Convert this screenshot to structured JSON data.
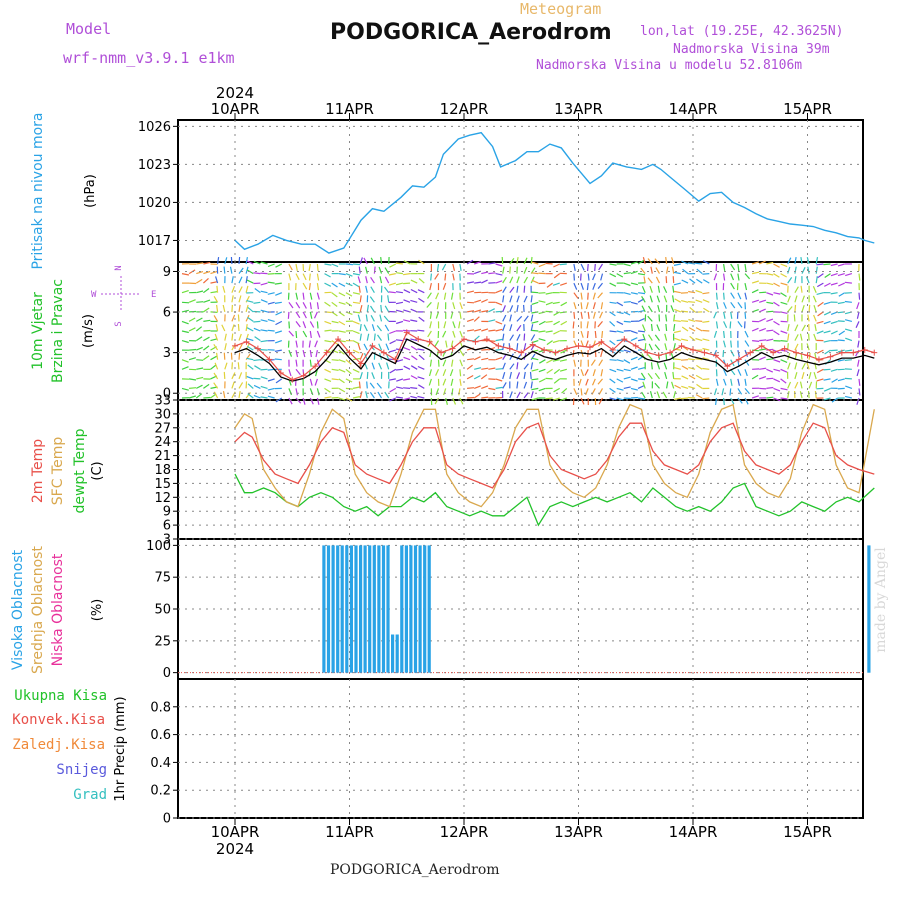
{
  "header": {
    "model_label": "Model",
    "model_version": "wrf-nmm_v3.9.1  e1km",
    "chart_kind": "Meteogram",
    "station": "PODGORICA_Aerodrom",
    "lonlat": "lon,lat (19.25E, 42.3625N)",
    "elevation": "Nadmorska Visina 39m",
    "elevation_model": "Nadmorska Visina u modelu 52.8106m"
  },
  "footer": {
    "station": "PODGORICA_Aerodrom"
  },
  "credit": "made by Angel",
  "colors": {
    "pressure": "#2aa3e6",
    "temp2m": "#e8504a",
    "sfc_temp": "#d9a84e",
    "dewpoint": "#22c22a",
    "cloud_high": "#2aa3e6",
    "wind_speed": "#000000",
    "gust": "#e8504a"
  },
  "chart_data": [
    {
      "type": "line",
      "panel": "pressure",
      "ylabel_main": "Pritisak na nivou mora",
      "ylabel_unit": "(hPa)",
      "yticks": [
        "1017",
        "1020",
        "1023",
        "1026"
      ],
      "ylim": [
        1015.3,
        1026.5
      ],
      "x_dates": [
        "10APR",
        "11APR",
        "12APR",
        "13APR",
        "14APR",
        "15APR"
      ],
      "x_year": "2024",
      "x_days": [
        0,
        0.083,
        0.2,
        0.33,
        0.45,
        0.58,
        0.7,
        0.82,
        0.95,
        1.1,
        1.2,
        1.3,
        1.45,
        1.55,
        1.65,
        1.75,
        1.82,
        1.95,
        2.05,
        2.15,
        2.25,
        2.32,
        2.45,
        2.55,
        2.65,
        2.75,
        2.85,
        2.95,
        3.1,
        3.2,
        3.3,
        3.42,
        3.55,
        3.65,
        3.72,
        3.8,
        3.92,
        4.05,
        4.15,
        4.25,
        4.35,
        4.45,
        4.55,
        4.65,
        4.75,
        4.85,
        4.95,
        5.05,
        5.15,
        5.25,
        5.35,
        5.45,
        5.5,
        5.583
      ],
      "series": [
        {
          "values": [
            1017.0,
            1016.3,
            1016.7,
            1017.4,
            1017.0,
            1016.7,
            1016.7,
            1016.0,
            1016.4,
            1018.6,
            1019.5,
            1019.3,
            1020.4,
            1021.3,
            1021.2,
            1022.0,
            1023.8,
            1025.0,
            1025.3,
            1025.5,
            1024.4,
            1022.8,
            1023.3,
            1024.0,
            1024.0,
            1024.6,
            1024.3,
            1023.1,
            1021.5,
            1022.1,
            1023.1,
            1022.8,
            1022.6,
            1023.0,
            1022.6,
            1022.0,
            1021.1,
            1020.1,
            1020.7,
            1020.8,
            1020.0,
            1019.6,
            1019.1,
            1018.7,
            1018.5,
            1018.3,
            1018.2,
            1018.1,
            1017.8,
            1017.6,
            1017.3,
            1017.2,
            1017.0,
            1016.8
          ]
        }
      ]
    },
    {
      "type": "line",
      "panel": "wind",
      "ylabel_main": "10m Vjetar",
      "ylabel_sub": "Brzina i Pravac",
      "ylabel_unit": "(m/s)",
      "compass": {
        "n": "N",
        "w": "W",
        "e": "E",
        "s": "S"
      },
      "yticks": [
        "0",
        "3",
        "6",
        "9"
      ],
      "ylim": [
        -0.5,
        9.7
      ],
      "x_days": [
        0,
        0.1,
        0.2,
        0.3,
        0.4,
        0.5,
        0.6,
        0.7,
        0.8,
        0.9,
        1.0,
        1.1,
        1.2,
        1.3,
        1.4,
        1.5,
        1.6,
        1.7,
        1.8,
        1.9,
        2.0,
        2.1,
        2.2,
        2.3,
        2.4,
        2.5,
        2.6,
        2.7,
        2.8,
        2.9,
        3.0,
        3.1,
        3.2,
        3.3,
        3.4,
        3.5,
        3.6,
        3.7,
        3.8,
        3.9,
        4.0,
        4.1,
        4.2,
        4.3,
        4.4,
        4.5,
        4.6,
        4.7,
        4.8,
        4.9,
        5.0,
        5.1,
        5.2,
        5.3,
        5.4,
        5.5,
        5.583
      ],
      "series": [
        {
          "values": [
            3.5,
            3.8,
            3.3,
            2.5,
            1.5,
            1.0,
            1.3,
            2.0,
            3.0,
            4.0,
            3.0,
            2.2,
            3.5,
            3.0,
            2.5,
            4.5,
            4.0,
            3.8,
            3.0,
            3.3,
            4.0,
            3.8,
            4.0,
            3.5,
            3.3,
            3.0,
            3.6,
            3.2,
            3.0,
            3.3,
            3.5,
            3.4,
            3.8,
            3.2,
            4.0,
            3.5,
            3.0,
            2.8,
            3.0,
            3.5,
            3.2,
            3.0,
            2.8,
            2.0,
            2.5,
            3.0,
            3.5,
            3.0,
            3.3,
            3.0,
            2.8,
            2.5,
            2.7,
            3.0,
            3.0,
            3.2,
            3.0
          ]
        },
        {
          "values": [
            3.0,
            3.3,
            2.8,
            2.2,
            1.2,
            0.9,
            1.1,
            1.6,
            2.5,
            3.6,
            2.6,
            1.8,
            3.0,
            2.6,
            2.2,
            4.0,
            3.6,
            3.2,
            2.5,
            2.8,
            3.5,
            3.2,
            3.4,
            3.0,
            2.8,
            2.5,
            3.1,
            2.7,
            2.5,
            2.8,
            3.0,
            2.9,
            3.3,
            2.7,
            3.5,
            3.0,
            2.5,
            2.3,
            2.5,
            3.0,
            2.7,
            2.5,
            2.3,
            1.6,
            2.0,
            2.5,
            3.0,
            2.6,
            2.8,
            2.5,
            2.3,
            2.1,
            2.3,
            2.6,
            2.6,
            2.8,
            2.6
          ]
        }
      ]
    },
    {
      "type": "line",
      "panel": "temperature",
      "ylabel_main": "2m Temp",
      "ylabel_sub": "SFC Temp",
      "ylabel_sub2": "dewpt Temp",
      "ylabel_unit": "(C)",
      "yticks": [
        "3",
        "6",
        "9",
        "12",
        "15",
        "18",
        "21",
        "24",
        "27",
        "30",
        "33"
      ],
      "ylim": [
        3,
        33
      ],
      "x_days": [
        0,
        0.083,
        0.15,
        0.25,
        0.35,
        0.45,
        0.55,
        0.65,
        0.75,
        0.85,
        0.95,
        1.05,
        1.15,
        1.25,
        1.35,
        1.45,
        1.55,
        1.65,
        1.75,
        1.85,
        1.95,
        2.05,
        2.15,
        2.25,
        2.35,
        2.45,
        2.55,
        2.65,
        2.75,
        2.85,
        2.95,
        3.05,
        3.15,
        3.25,
        3.35,
        3.45,
        3.55,
        3.65,
        3.75,
        3.85,
        3.95,
        4.05,
        4.15,
        4.25,
        4.35,
        4.45,
        4.55,
        4.65,
        4.75,
        4.85,
        4.95,
        5.05,
        5.15,
        5.25,
        5.35,
        5.45,
        5.583
      ],
      "series": [
        {
          "values": [
            24,
            26,
            25,
            20,
            17,
            16,
            15,
            19,
            24,
            27,
            26,
            19,
            17,
            16,
            15,
            19,
            24,
            27,
            27,
            19,
            17,
            16,
            15,
            14,
            18,
            24,
            27,
            28,
            21,
            18,
            17,
            16,
            17,
            20,
            25,
            28,
            28,
            22,
            19,
            18,
            17,
            19,
            24,
            27,
            28,
            22,
            19,
            18,
            17,
            19,
            24,
            28,
            27,
            21,
            19,
            18,
            17
          ]
        },
        {
          "values": [
            27,
            30,
            29,
            18,
            14,
            11,
            10,
            17,
            26,
            31,
            29,
            17,
            13,
            11,
            10,
            17,
            26,
            31,
            31,
            17,
            13,
            11,
            10,
            13,
            19,
            27,
            31,
            31,
            19,
            15,
            13,
            12,
            14,
            19,
            27,
            32,
            31,
            19,
            15,
            13,
            12,
            17,
            26,
            31,
            32,
            19,
            15,
            13,
            12,
            16,
            26,
            32,
            31,
            19,
            14,
            13,
            31
          ]
        },
        {
          "values": [
            17,
            13,
            13,
            14,
            13,
            11,
            10,
            12,
            13,
            12,
            10,
            9,
            10,
            8,
            10,
            10,
            12,
            11,
            13,
            10,
            9,
            8,
            9,
            8,
            8,
            10,
            12,
            6,
            10,
            11,
            10,
            11,
            12,
            11,
            12,
            13,
            11,
            14,
            12,
            10,
            9,
            10,
            9,
            11,
            14,
            15,
            10,
            9,
            8,
            9,
            11,
            10,
            9,
            11,
            12,
            11,
            14
          ]
        }
      ]
    },
    {
      "type": "bar",
      "panel": "clouds",
      "ylabel_main": "Visoka Oblacnost",
      "ylabel_sub": "Srednja Oblacnost",
      "ylabel_sub2": "Niska Oblacnost",
      "ylabel_unit": "(%)",
      "yticks": [
        "0",
        "25",
        "50",
        "75",
        "100"
      ],
      "ylim": [
        -5,
        105
      ],
      "x_days": [
        0.78,
        0.82,
        0.86,
        0.9,
        0.94,
        0.98,
        1.02,
        1.06,
        1.1,
        1.14,
        1.18,
        1.22,
        1.26,
        1.3,
        1.34,
        1.38,
        1.42,
        1.46,
        1.5,
        1.54,
        1.58,
        1.62,
        1.66,
        1.7,
        5.54
      ],
      "series": [
        {
          "values": [
            100,
            100,
            100,
            100,
            100,
            100,
            100,
            100,
            100,
            100,
            100,
            100,
            100,
            100,
            100,
            30,
            30,
            100,
            100,
            100,
            100,
            100,
            100,
            100,
            100
          ]
        }
      ]
    },
    {
      "type": "bar",
      "panel": "precipitation",
      "legend": [
        "Ukupna Kisa",
        "Konvek.Kisa",
        "Zaledj.Kisa",
        "Snijeg",
        "Grad"
      ],
      "legend_colors": [
        "#22c22a",
        "#e8504a",
        "#f08a3a",
        "#5a5adc",
        "#35c0c0"
      ],
      "ylabel_unit": "1hr Precip (mm)",
      "yticks": [
        "0",
        "0.2",
        "0.4",
        "0.6",
        "0.8"
      ],
      "ylim": [
        0,
        1.0
      ],
      "series": [
        {
          "values": []
        }
      ]
    }
  ]
}
